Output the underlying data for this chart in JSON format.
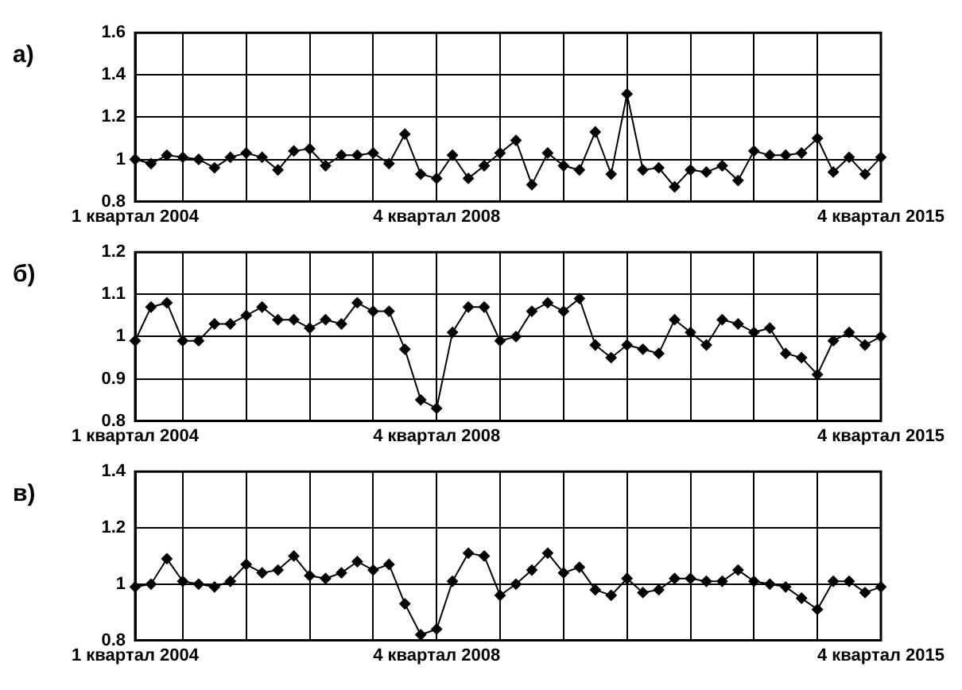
{
  "chart_data": [
    {
      "type": "line",
      "title": "а)",
      "categories": [
        "1 квартал 2004",
        null,
        null,
        null,
        null,
        null,
        null,
        null,
        null,
        null,
        null,
        null,
        null,
        null,
        null,
        null,
        null,
        null,
        null,
        "4 квартал 2008",
        null,
        null,
        null,
        null,
        null,
        null,
        null,
        null,
        null,
        null,
        null,
        null,
        null,
        null,
        null,
        null,
        null,
        null,
        null,
        null,
        null,
        null,
        null,
        null,
        null,
        null,
        null,
        "4 квартал 2015"
      ],
      "series": [
        {
          "color": "#000000",
          "values": [
            1.0,
            0.98,
            1.02,
            1.01,
            1.0,
            0.96,
            1.01,
            1.03,
            1.01,
            0.95,
            1.04,
            1.05,
            0.97,
            1.02,
            1.02,
            1.03,
            0.98,
            1.12,
            0.93,
            0.91,
            1.02,
            0.91,
            0.97,
            1.03,
            1.09,
            0.88,
            1.03,
            0.97,
            0.95,
            1.13,
            0.93,
            1.31,
            0.95,
            0.96,
            0.87,
            0.95,
            0.94,
            0.97,
            0.9,
            1.04,
            1.02,
            1.02,
            1.03,
            1.1,
            0.94,
            1.01,
            0.93,
            1.01
          ]
        }
      ],
      "ylim": [
        0.8,
        1.6
      ],
      "yticks": [
        0.8,
        1,
        1.2,
        1.4,
        1.6
      ],
      "grid": true,
      "legend": false,
      "marker": "diamond",
      "line_style": "solid"
    },
    {
      "type": "line",
      "title": "б)",
      "categories": [
        "1 квартал 2004",
        null,
        null,
        null,
        null,
        null,
        null,
        null,
        null,
        null,
        null,
        null,
        null,
        null,
        null,
        null,
        null,
        null,
        null,
        "4 квартал 2008",
        null,
        null,
        null,
        null,
        null,
        null,
        null,
        null,
        null,
        null,
        null,
        null,
        null,
        null,
        null,
        null,
        null,
        null,
        null,
        null,
        null,
        null,
        null,
        null,
        null,
        null,
        null,
        "4 квартал 2015"
      ],
      "series": [
        {
          "color": "#000000",
          "values": [
            0.99,
            1.07,
            1.08,
            0.99,
            0.99,
            1.03,
            1.03,
            1.05,
            1.07,
            1.04,
            1.04,
            1.02,
            1.04,
            1.03,
            1.08,
            1.06,
            1.06,
            0.97,
            0.85,
            0.83,
            1.01,
            1.07,
            1.07,
            0.99,
            1.0,
            1.06,
            1.08,
            1.06,
            1.09,
            0.98,
            0.95,
            0.98,
            0.97,
            0.96,
            1.04,
            1.01,
            0.98,
            1.04,
            1.03,
            1.01,
            1.02,
            0.96,
            0.95,
            0.91,
            0.99,
            1.01,
            0.98,
            1.0
          ]
        }
      ],
      "ylim": [
        0.8,
        1.2
      ],
      "yticks": [
        0.8,
        0.9,
        1,
        1.1,
        1.2
      ],
      "grid": true,
      "legend": false,
      "marker": "diamond",
      "line_style": "solid"
    },
    {
      "type": "line",
      "title": "в)",
      "categories": [
        "1 квартал 2004",
        null,
        null,
        null,
        null,
        null,
        null,
        null,
        null,
        null,
        null,
        null,
        null,
        null,
        null,
        null,
        null,
        null,
        null,
        "4 квартал 2008",
        null,
        null,
        null,
        null,
        null,
        null,
        null,
        null,
        null,
        null,
        null,
        null,
        null,
        null,
        null,
        null,
        null,
        null,
        null,
        null,
        null,
        null,
        null,
        null,
        null,
        null,
        null,
        "4 квартал 2015"
      ],
      "series": [
        {
          "color": "#000000",
          "values": [
            0.99,
            1.0,
            1.09,
            1.01,
            1.0,
            0.99,
            1.01,
            1.07,
            1.04,
            1.05,
            1.1,
            1.03,
            1.02,
            1.04,
            1.08,
            1.05,
            1.07,
            0.93,
            0.82,
            0.84,
            1.01,
            1.11,
            1.1,
            0.96,
            1.0,
            1.05,
            1.11,
            1.04,
            1.06,
            0.98,
            0.96,
            1.02,
            0.97,
            0.98,
            1.02,
            1.02,
            1.01,
            1.01,
            1.05,
            1.01,
            1.0,
            0.99,
            0.95,
            0.91,
            1.01,
            1.01,
            0.97,
            0.99
          ]
        }
      ],
      "ylim": [
        0.8,
        1.4
      ],
      "yticks": [
        0.8,
        1,
        1.2,
        1.4
      ],
      "grid": true,
      "legend": false,
      "marker": "diamond",
      "line_style": "solid"
    }
  ]
}
